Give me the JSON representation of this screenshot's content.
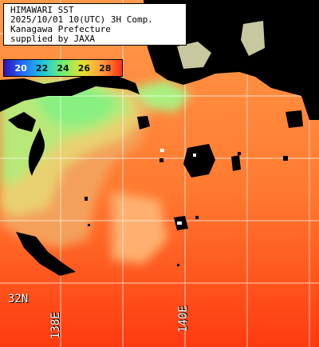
{
  "header": {
    "lines": [
      "HIMAWARI SST",
      "2025/10/01 10(UTC) 3H Comp.",
      "Kanagawa Prefecture",
      "supplied by JAXA"
    ]
  },
  "legend": {
    "ticks": [
      "20",
      "22",
      "24",
      "26",
      "28"
    ],
    "colors": [
      "#3010b0",
      "#2070ff",
      "#20c8d8",
      "#70f070",
      "#e8e030",
      "#ff9a40",
      "#ff3010"
    ]
  },
  "grid_labels": {
    "lat": "32N",
    "lon": [
      "138E",
      "140E"
    ]
  },
  "colors": {
    "land": "#000000",
    "cloud_mask": "#c8c8a0",
    "gridline": "#ffffff"
  }
}
